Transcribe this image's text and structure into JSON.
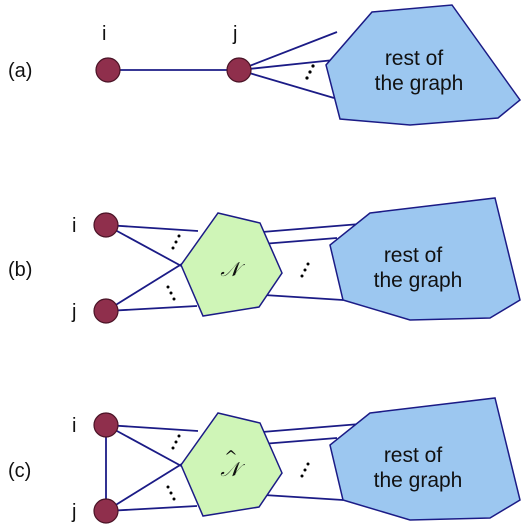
{
  "panel_a": {
    "label": "(a)",
    "node_i": "i",
    "node_j": "j",
    "rest_line1": "rest of",
    "rest_line2": "the graph"
  },
  "panel_b": {
    "label": "(b)",
    "node_i": "i",
    "node_j": "j",
    "neighborhood": "𝒩",
    "rest_line1": "rest of",
    "rest_line2": "the graph"
  },
  "panel_c": {
    "label": "(c)",
    "node_i": "i",
    "node_j": "j",
    "neighborhood": "𝒩",
    "neighborhood_hat": "^",
    "rest_line1": "rest of",
    "rest_line2": "the graph"
  },
  "colors": {
    "node": "#8f2f4c",
    "edge": "#1b1b86",
    "rest_of_graph": "#9cc7f0",
    "neighborhood": "#cff5b7"
  }
}
